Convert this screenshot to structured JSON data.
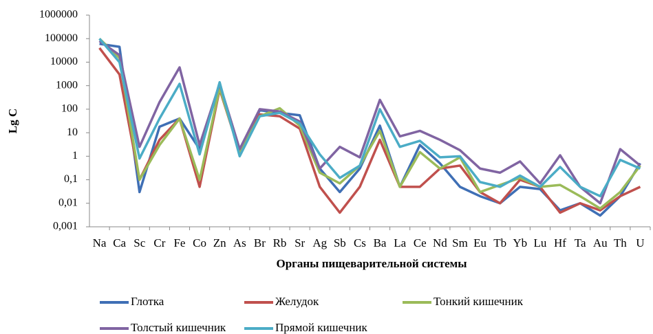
{
  "chart_data": {
    "type": "line",
    "y_label": "Lg C",
    "x_label": "Органы пищеварительной системы",
    "log_scale": true,
    "grid": false,
    "categories": [
      "Na",
      "Ca",
      "Sc",
      "Cr",
      "Fe",
      "Co",
      "Zn",
      "As",
      "Br",
      "Rb",
      "Sr",
      "Ag",
      "Sb",
      "Cs",
      "Ba",
      "La",
      "Ce",
      "Nd",
      "Sm",
      "Eu",
      "Tb",
      "Yb",
      "Lu",
      "Hf",
      "Ta",
      "Au",
      "Th",
      "U"
    ],
    "ylim": [
      0.001,
      1000000
    ],
    "yticks": [
      {
        "value": 0.001,
        "label": "0,001"
      },
      {
        "value": 0.01,
        "label": "0,01"
      },
      {
        "value": 0.1,
        "label": "0,1"
      },
      1,
      10,
      100,
      1000,
      10000,
      100000,
      1000000
    ],
    "series": [
      {
        "name": "Глотка",
        "color": "#3f6fb5",
        "values": [
          60000,
          45000,
          0.03,
          18,
          40,
          2,
          1000,
          1.5,
          90,
          70,
          55,
          0.3,
          0.03,
          0.3,
          20,
          0.05,
          3,
          0.5,
          0.05,
          0.02,
          0.01,
          0.05,
          0.04,
          0.005,
          0.01,
          0.003,
          0.02,
          0.5
        ]
      },
      {
        "name": "Желудок",
        "color": "#c0504d",
        "values": [
          40000,
          3000,
          0.1,
          5,
          40,
          0.05,
          700,
          1.5,
          60,
          50,
          15,
          0.05,
          0.004,
          0.05,
          5,
          0.05,
          0.05,
          0.3,
          0.4,
          0.03,
          0.01,
          0.1,
          0.05,
          0.004,
          0.01,
          0.005,
          0.02,
          0.05
        ]
      },
      {
        "name": "Тонкий кишечник",
        "color": "#9bbb59",
        "values": [
          100000,
          15000,
          0.1,
          3,
          40,
          0.1,
          800,
          1.5,
          50,
          110,
          20,
          0.2,
          0.07,
          0.4,
          12,
          0.05,
          1.5,
          0.3,
          0.9,
          0.03,
          0.06,
          0.12,
          0.05,
          0.06,
          0.02,
          0.006,
          0.03,
          0.4
        ]
      },
      {
        "name": "Толстый кишечник",
        "color": "#8064a2",
        "values": [
          80000,
          20000,
          2.5,
          200,
          6000,
          3,
          1200,
          2,
          100,
          80,
          30,
          0.3,
          2.5,
          0.9,
          250,
          7,
          12,
          5,
          1.8,
          0.3,
          0.2,
          0.6,
          0.07,
          1.1,
          0.05,
          0.01,
          2,
          0.4
        ]
      },
      {
        "name": "Прямой кишечник",
        "color": "#4bacc6",
        "values": [
          100000,
          10000,
          0.8,
          40,
          1200,
          1.2,
          1400,
          1,
          50,
          70,
          25,
          1.2,
          0.12,
          0.4,
          100,
          2.5,
          4.5,
          0.9,
          1,
          0.08,
          0.05,
          0.15,
          0.05,
          0.35,
          0.05,
          0.02,
          0.7,
          0.3
        ]
      }
    ]
  }
}
